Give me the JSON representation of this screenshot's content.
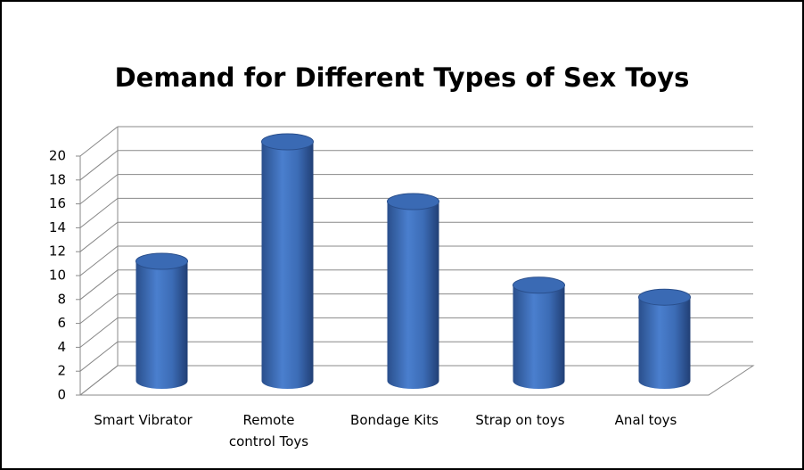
{
  "chart_data": {
    "type": "bar",
    "title": "Demand for Different Types of Sex Toys",
    "categories": [
      "Smart Vibrator",
      "Remote control Toys",
      "Bondage Kits",
      "Strap on toys",
      "Anal toys"
    ],
    "values": [
      10,
      20,
      15,
      8,
      7
    ],
    "color": "#4a7fce",
    "ylim": [
      0,
      20
    ],
    "yticks": [
      0,
      2,
      4,
      6,
      8,
      10,
      12,
      14,
      16,
      18,
      20
    ],
    "grid": true
  }
}
